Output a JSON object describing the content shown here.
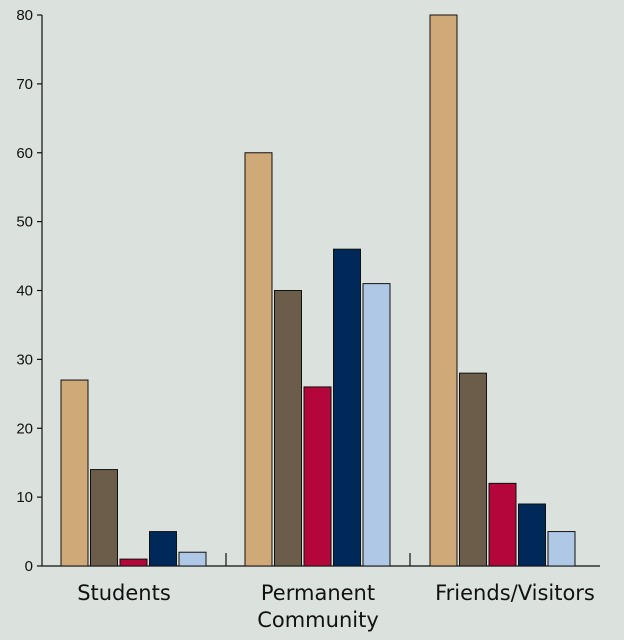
{
  "chart_data": {
    "type": "bar",
    "title": "",
    "xlabel": "",
    "ylabel": "",
    "ylim": [
      0,
      80
    ],
    "yticks": [
      0,
      10,
      20,
      30,
      40,
      50,
      60,
      70,
      80
    ],
    "grid": false,
    "categories": [
      [
        "Students"
      ],
      [
        "Permanent",
        "Community"
      ],
      [
        "Friends/Visitors"
      ]
    ],
    "series": [
      {
        "values": [
          27,
          60,
          80
        ],
        "color": "#cfa978"
      },
      {
        "values": [
          14,
          40,
          28
        ],
        "color": "#6b5d4a"
      },
      {
        "values": [
          1,
          26,
          12
        ],
        "color": "#b5063c"
      },
      {
        "values": [
          5,
          46,
          9
        ],
        "color": "#00295a"
      },
      {
        "values": [
          2,
          41,
          5
        ],
        "color": "#aec8e6"
      }
    ]
  }
}
